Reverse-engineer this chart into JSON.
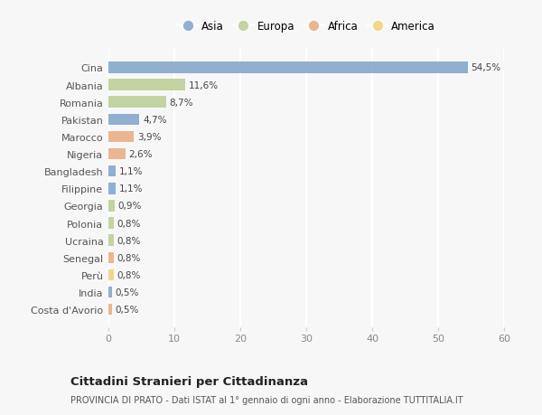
{
  "countries": [
    "Cina",
    "Albania",
    "Romania",
    "Pakistan",
    "Marocco",
    "Nigeria",
    "Bangladesh",
    "Filippine",
    "Georgia",
    "Polonia",
    "Ucraina",
    "Senegal",
    "Perù",
    "India",
    "Costa d'Avorio"
  ],
  "values": [
    54.5,
    11.6,
    8.7,
    4.7,
    3.9,
    2.6,
    1.1,
    1.1,
    0.9,
    0.8,
    0.8,
    0.8,
    0.8,
    0.5,
    0.5
  ],
  "labels": [
    "54,5%",
    "11,6%",
    "8,7%",
    "4,7%",
    "3,9%",
    "2,6%",
    "1,1%",
    "1,1%",
    "0,9%",
    "0,8%",
    "0,8%",
    "0,8%",
    "0,8%",
    "0,5%",
    "0,5%"
  ],
  "continents": [
    "Asia",
    "Europa",
    "Europa",
    "Asia",
    "Africa",
    "Africa",
    "Asia",
    "Asia",
    "Europa",
    "Europa",
    "Europa",
    "Africa",
    "America",
    "Asia",
    "Africa"
  ],
  "colors": {
    "Asia": "#7b9fc7",
    "Europa": "#b8cc8f",
    "Africa": "#e8a87c",
    "America": "#f0d070"
  },
  "legend_order": [
    "Asia",
    "Europa",
    "Africa",
    "America"
  ],
  "title": "Cittadini Stranieri per Cittadinanza",
  "subtitle": "PROVINCIA DI PRATO - Dati ISTAT al 1° gennaio di ogni anno - Elaborazione TUTTITALIA.IT",
  "xlim": [
    0,
    60
  ],
  "xticks": [
    0,
    10,
    20,
    30,
    40,
    50,
    60
  ],
  "background_color": "#f7f7f7",
  "bar_height": 0.65,
  "alpha": 0.82
}
